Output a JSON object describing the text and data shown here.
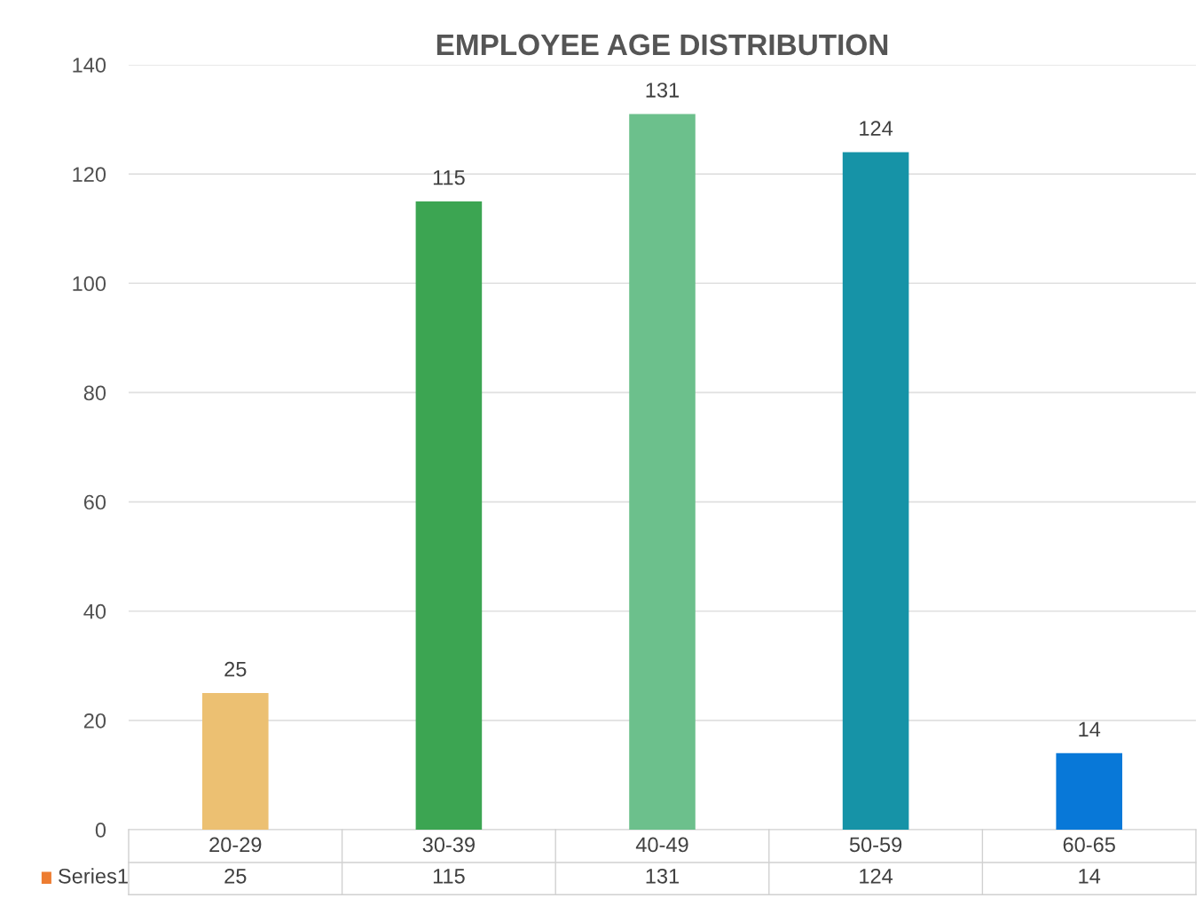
{
  "chart_data": {
    "type": "bar",
    "title": "EMPLOYEE AGE DISTRIBUTION",
    "categories": [
      "20-29",
      "30-39",
      "40-49",
      "50-59",
      "60-65"
    ],
    "series": [
      {
        "name": "Series1",
        "color": "#ed7d31",
        "colors": [
          "#ecc072",
          "#3ca552",
          "#6cc08c",
          "#1693a7",
          "#0878d8"
        ],
        "values": [
          25,
          115,
          131,
          124,
          14
        ],
        "value_labels": [
          "25",
          "115",
          "131",
          "124",
          "14"
        ]
      }
    ],
    "annotations": [
      "25",
      "115",
      "131",
      "124",
      "14"
    ],
    "ylim": [
      0,
      140
    ],
    "yticks": [
      0,
      20,
      40,
      60,
      80,
      100,
      120,
      140
    ],
    "grid": "y",
    "data_labels": true,
    "legend": "bottom left"
  }
}
